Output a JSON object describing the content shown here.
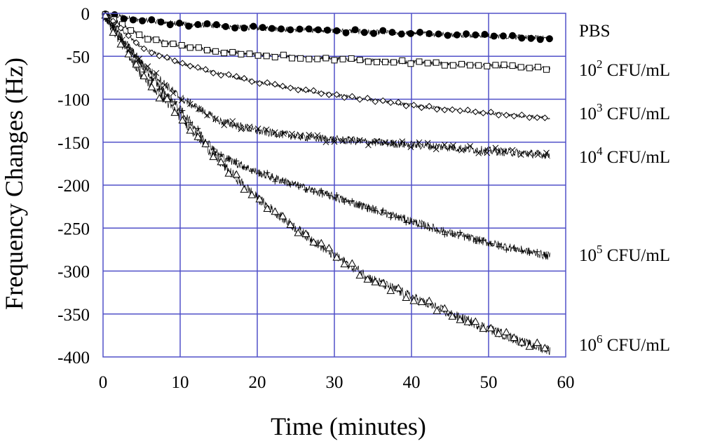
{
  "chart_data": {
    "type": "scatter",
    "title": "",
    "xlabel": "Time (minutes)",
    "ylabel": "Frequency Changes (Hz)",
    "xlim": [
      0,
      60
    ],
    "ylim": [
      -400,
      0
    ],
    "xticks": [
      "0",
      "10",
      "20",
      "30",
      "40",
      "50",
      "60"
    ],
    "yticks": [
      "0",
      "-50",
      "-100",
      "-150",
      "-200",
      "-250",
      "-300",
      "-350",
      "-400"
    ],
    "grid": true,
    "grid_color": "#5050c8",
    "series_color": "#000000",
    "legend": "labels at right end of each series",
    "series": [
      {
        "name": "PBS",
        "label_base": "",
        "label_exp": "",
        "label_unit": "PBS",
        "marker": "filled-circle",
        "x": [
          0,
          5,
          10,
          15,
          20,
          25,
          30,
          35,
          40,
          45,
          50,
          55,
          58
        ],
        "y": [
          0,
          -8,
          -12,
          -15,
          -17,
          -19,
          -20,
          -22,
          -23,
          -25,
          -26,
          -28,
          -29
        ]
      },
      {
        "name": "10^2 CFU/mL",
        "label_base": "10",
        "label_exp": "2",
        "label_unit": " CFU/mL",
        "marker": "open-square",
        "x": [
          0,
          5,
          10,
          15,
          20,
          25,
          30,
          35,
          40,
          45,
          50,
          55,
          58
        ],
        "y": [
          0,
          -27,
          -38,
          -44,
          -48,
          -51,
          -53,
          -55,
          -57,
          -59,
          -61,
          -63,
          -64
        ]
      },
      {
        "name": "10^3 CFU/mL",
        "label_base": "10",
        "label_exp": "3",
        "label_unit": " CFU/mL",
        "marker": "open-diamond",
        "x": [
          0,
          5,
          10,
          15,
          20,
          25,
          30,
          35,
          40,
          45,
          50,
          55,
          58
        ],
        "y": [
          0,
          -40,
          -58,
          -70,
          -80,
          -88,
          -95,
          -101,
          -107,
          -112,
          -116,
          -120,
          -122
        ]
      },
      {
        "name": "10^4 CFU/mL",
        "label_base": "10",
        "label_exp": "4",
        "label_unit": " CFU/mL",
        "marker": "x-cross",
        "x": [
          0,
          5,
          10,
          15,
          20,
          25,
          30,
          35,
          40,
          45,
          50,
          55,
          58
        ],
        "y": [
          0,
          -58,
          -98,
          -125,
          -137,
          -143,
          -147,
          -150,
          -153,
          -156,
          -160,
          -163,
          -165
        ]
      },
      {
        "name": "10^5 CFU/mL",
        "label_base": "10",
        "label_exp": "5",
        "label_unit": " CFU/mL",
        "marker": "plus",
        "x": [
          0,
          5,
          10,
          15,
          20,
          25,
          30,
          35,
          40,
          45,
          50,
          55,
          58
        ],
        "y": [
          0,
          -62,
          -112,
          -165,
          -185,
          -200,
          -214,
          -228,
          -242,
          -256,
          -267,
          -277,
          -283
        ]
      },
      {
        "name": "10^6 CFU/mL",
        "label_base": "10",
        "label_exp": "6",
        "label_unit": " CFU/mL",
        "marker": "open-triangle",
        "x": [
          0,
          5,
          10,
          15,
          20,
          25,
          30,
          35,
          40,
          45,
          50,
          55,
          58
        ],
        "y": [
          0,
          -72,
          -120,
          -172,
          -215,
          -250,
          -282,
          -310,
          -330,
          -350,
          -367,
          -385,
          -392
        ]
      }
    ]
  }
}
